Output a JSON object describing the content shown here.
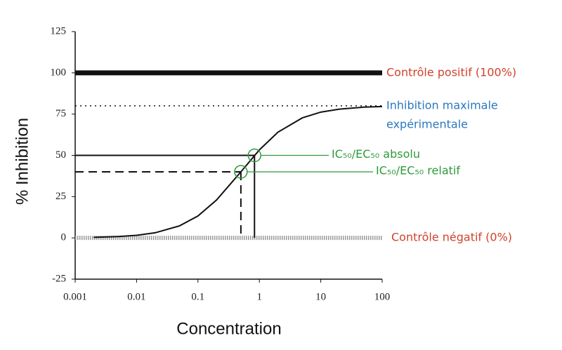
{
  "chart_data": {
    "type": "line",
    "xlabel": "Concentration",
    "ylabel": "% Inhibition",
    "xlog": true,
    "xlim": [
      0.001,
      100
    ],
    "xticks": [
      0.001,
      0.01,
      0.1,
      1,
      10,
      100
    ],
    "ylim": [
      -25,
      125
    ],
    "yticks": [
      -25,
      0,
      25,
      50,
      75,
      100,
      125
    ],
    "x": [
      0.002,
      0.005,
      0.01,
      0.02,
      0.05,
      0.1,
      0.2,
      0.5,
      1,
      2,
      5,
      10,
      20,
      50,
      100
    ],
    "values": [
      0.32,
      0.79,
      1.57,
      3.08,
      7.27,
      13.3,
      22.9,
      40,
      53.3,
      64,
      72.7,
      76.2,
      78,
      79.2,
      79.6
    ],
    "color": "#111111",
    "reference_lines": [
      {
        "y": 100,
        "style": "thick",
        "color": "#111111",
        "label": [
          "Contrôle positif (100%)"
        ],
        "label_color": "#d0422c"
      },
      {
        "y": 80,
        "style": "dotted",
        "color": "#111111",
        "label": [
          "Inhibition maximale",
          "expérimentale"
        ],
        "label_color": "#2a78c0"
      },
      {
        "y": 0,
        "style": "hatched",
        "color": "#9a9a9a",
        "label": [
          "Contrôle négatif (0%)"
        ],
        "label_color": "#d0422c"
      }
    ],
    "points": [
      {
        "x": 0.833,
        "y": 50,
        "style": "solid",
        "label": "IC₅₀/EC₅₀ absolu",
        "color": "#2e9a3c"
      },
      {
        "x": 0.5,
        "y": 40,
        "style": "dashed",
        "label": "IC₅₀/EC₅₀ relatif",
        "color": "#2e9a3c"
      }
    ]
  }
}
